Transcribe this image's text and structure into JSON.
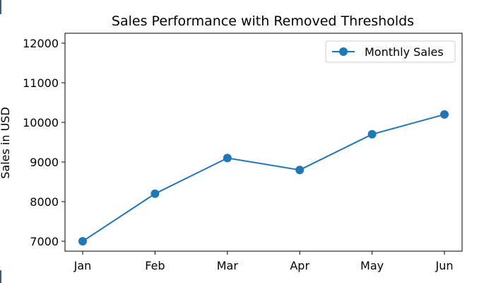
{
  "chart_data": {
    "type": "line",
    "title": "Sales Performance with Removed Thresholds",
    "xlabel": "",
    "ylabel": "Sales in USD",
    "categories": [
      "Jan",
      "Feb",
      "Mar",
      "Apr",
      "May",
      "Jun"
    ],
    "series": [
      {
        "name": "Monthly Sales",
        "values": [
          7000,
          8200,
          9100,
          8800,
          9700,
          10200
        ],
        "color": "#1f77b4",
        "marker": "circle"
      }
    ],
    "ylim": [
      6750,
      12250
    ],
    "yticks": [
      7000,
      8000,
      9000,
      10000,
      11000,
      12000
    ],
    "grid": false,
    "legend_position": "top-right"
  }
}
